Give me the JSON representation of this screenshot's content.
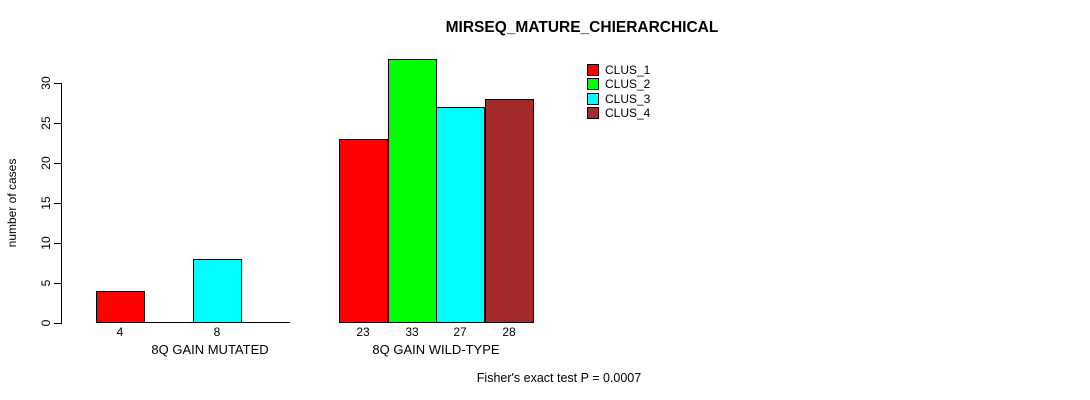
{
  "page": {
    "background": "#FFFFFF"
  },
  "chart_data": {
    "type": "bar",
    "title": "MIRSEQ_MATURE_CHIERARCHICAL",
    "ylabel": "number of cases",
    "xlabel": "",
    "categories": [
      "8Q GAIN MUTATED",
      "8Q GAIN WILD-TYPE"
    ],
    "series": [
      {
        "name": "CLUS_1",
        "color": "#FF0000",
        "values": [
          4,
          23
        ]
      },
      {
        "name": "CLUS_2",
        "color": "#00FF00",
        "values": [
          0,
          33
        ]
      },
      {
        "name": "CLUS_3",
        "color": "#00FFFF",
        "values": [
          8,
          27
        ]
      },
      {
        "name": "CLUS_4",
        "color": "#A52A2A",
        "values": [
          0,
          28
        ]
      }
    ],
    "bar_value_labels": [
      [
        "4",
        "8"
      ],
      [
        "23",
        "33",
        "27",
        "28"
      ]
    ],
    "yticks": [
      "0",
      "5",
      "10",
      "15",
      "20",
      "25",
      "30"
    ],
    "ylim": [
      0,
      33
    ],
    "grid": false,
    "legend_position": "top-right",
    "annotation": "Fisher's exact test P = 0.0007"
  }
}
